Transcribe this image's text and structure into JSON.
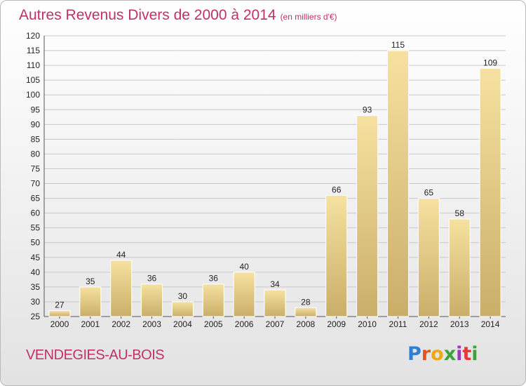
{
  "header": {
    "title": "Autres Revenus Divers de 2000 à 2014",
    "unit": "(en milliers d'€)"
  },
  "footer": {
    "commune": "VENDEGIES-AU-BOIS",
    "logo": [
      "P",
      "r",
      "o",
      "x",
      "i",
      "t",
      "i"
    ]
  },
  "colors": {
    "title": "#c0306a",
    "bar_light": "#f6e1a0",
    "bar_dark": "#c9ae68",
    "logo": [
      "#2e7fd6",
      "#e6541e",
      "#f0a810",
      "#3aa33a",
      "#9a3ab8",
      "#e03a3a",
      "#3aa33a"
    ]
  },
  "chart_data": {
    "type": "bar",
    "title": "Autres Revenus Divers de 2000 à 2014",
    "subtitle": "(en milliers d'€)",
    "xlabel": "",
    "ylabel": "",
    "categories": [
      "2000",
      "2001",
      "2002",
      "2003",
      "2004",
      "2005",
      "2006",
      "2007",
      "2008",
      "2009",
      "2010",
      "2011",
      "2012",
      "2013",
      "2014"
    ],
    "values": [
      27,
      35,
      44,
      36,
      30,
      36,
      40,
      34,
      28,
      66,
      93,
      115,
      65,
      58,
      109
    ],
    "ylim": [
      25,
      120
    ],
    "yticks": [
      25,
      30,
      35,
      40,
      45,
      50,
      55,
      60,
      65,
      70,
      75,
      80,
      85,
      90,
      95,
      100,
      105,
      110,
      115,
      120
    ],
    "grid": "horizontal",
    "data_labels": true
  }
}
